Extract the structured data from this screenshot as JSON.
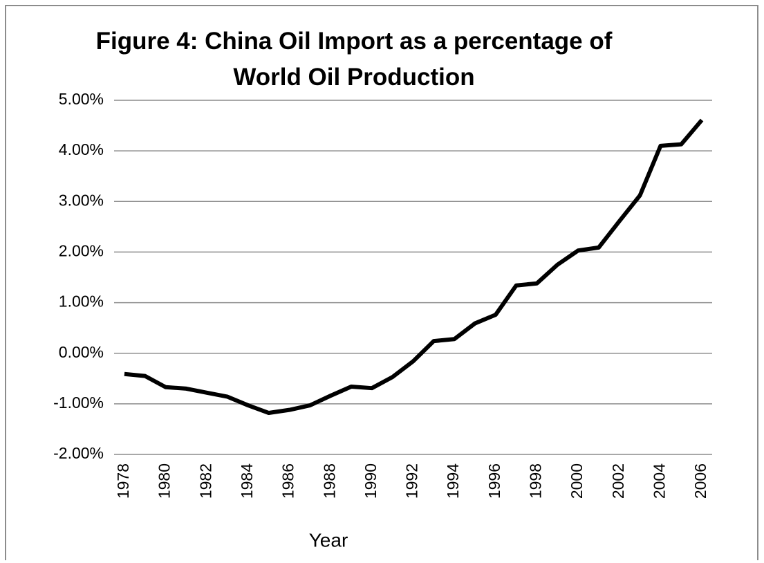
{
  "chart_data": {
    "type": "line",
    "title": "Figure 4: China Oil Import as a percentage of World Oil Production",
    "xlabel": "Year",
    "categories": [
      "1978",
      null,
      "1980",
      null,
      "1982",
      null,
      "1984",
      null,
      "1986",
      null,
      "1988",
      null,
      "1990",
      null,
      "1992",
      null,
      "1994",
      null,
      "1996",
      null,
      "1998",
      null,
      "2000",
      null,
      "2002",
      null,
      "2004",
      null,
      "2006"
    ],
    "series": [
      {
        "name": "China Oil Import",
        "color": "#000000",
        "values": [
          -0.41,
          -0.45,
          -0.67,
          -0.7,
          -0.78,
          -0.86,
          -1.03,
          -1.18,
          -1.12,
          -1.03,
          -0.84,
          -0.66,
          -0.69,
          -0.47,
          -0.16,
          0.24,
          0.28,
          0.59,
          0.76,
          1.34,
          1.38,
          1.75,
          2.03,
          2.09,
          2.61,
          3.12,
          4.1,
          4.13,
          4.61
        ]
      }
    ],
    "ylim": [
      -2,
      5
    ],
    "yticks": [
      {
        "value": -2,
        "label": "-2.00%"
      },
      {
        "value": -1,
        "label": "-1.00%"
      },
      {
        "value": 0,
        "label": "0.00%"
      },
      {
        "value": 1,
        "label": "1.00%"
      },
      {
        "value": 2,
        "label": "2.00%"
      },
      {
        "value": 3,
        "label": "3.00%"
      },
      {
        "value": 4,
        "label": "4.00%"
      },
      {
        "value": 5,
        "label": "5.00%"
      }
    ],
    "grid": true
  }
}
